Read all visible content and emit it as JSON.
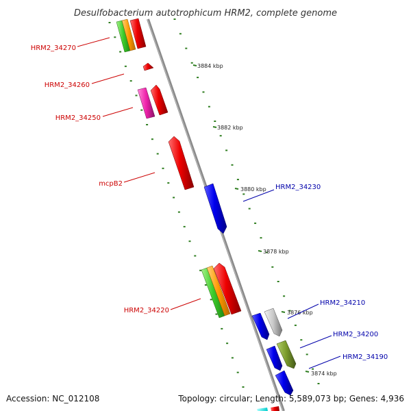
{
  "title": "Desulfobacterium autotrophicum HRM2, complete genome",
  "footer": {
    "accession": "Accession: NC_012108",
    "summary": "Topology: circular; Length: 5,589,073 bp; Genes: 4,936"
  },
  "kbp_ticks": [
    "3884 kbp",
    "3882 kbp",
    "3880 kbp",
    "3878 kbp",
    "3876 kbp",
    "3874 kbp"
  ],
  "colors": {
    "backbone": "#888888",
    "tick_dots": "#2e7d1f",
    "left_labels": "#cc0000",
    "right_labels": "#0000aa"
  },
  "gene_labels_left": [
    "HRM2_34270",
    "HRM2_34260",
    "HRM2_34250",
    "mcpB2",
    "HRM2_34220"
  ],
  "gene_labels_right": [
    "HRM2_34230",
    "HRM2_34210",
    "HRM2_34200",
    "HRM2_34190"
  ]
}
